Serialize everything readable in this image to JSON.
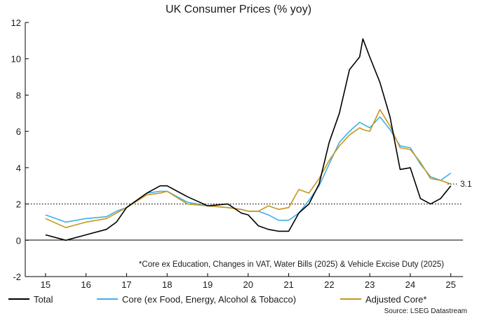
{
  "chart_data": {
    "type": "line",
    "title": "UK Consumer Prices (% yoy)",
    "xlabel": "",
    "ylabel": "",
    "xlim": [
      2014.5,
      2025.3
    ],
    "ylim": [
      -2,
      12
    ],
    "yticks": [
      -2,
      0,
      2,
      4,
      6,
      8,
      10,
      12
    ],
    "xtick_labels": [
      "15",
      "16",
      "17",
      "18",
      "19",
      "20",
      "21",
      "22",
      "23",
      "24",
      "25"
    ],
    "xtick_positions": [
      2015,
      2016,
      2017,
      2018,
      2019,
      2020,
      2021,
      2022,
      2023,
      2024,
      2025
    ],
    "reference_line": {
      "y": 2,
      "style": "dotted"
    },
    "annotation": "*Core ex Education, Changes in VAT, Water Bills (2025) & Vehicle Excise Duty (2025)",
    "end_label": "3.1",
    "end_label_value": 3.1,
    "source": "Source: LSEG Datastream",
    "grid": false,
    "legend_position": "bottom",
    "series": [
      {
        "name": "Total",
        "color": "#000000",
        "x": [
          2015.0,
          2015.5,
          2016.0,
          2016.5,
          2016.75,
          2017.0,
          2017.5,
          2017.83,
          2018.0,
          2018.5,
          2019.0,
          2019.5,
          2019.83,
          2020.0,
          2020.25,
          2020.5,
          2020.75,
          2021.0,
          2021.25,
          2021.5,
          2021.75,
          2022.0,
          2022.25,
          2022.5,
          2022.75,
          2022.83,
          2023.0,
          2023.25,
          2023.5,
          2023.75,
          2024.0,
          2024.25,
          2024.5,
          2024.75,
          2025.0
        ],
        "y": [
          0.3,
          0.0,
          0.3,
          0.6,
          1.0,
          1.8,
          2.6,
          3.0,
          3.0,
          2.4,
          1.9,
          2.0,
          1.5,
          1.4,
          0.8,
          0.6,
          0.5,
          0.5,
          1.5,
          2.0,
          3.1,
          5.4,
          7.0,
          9.4,
          10.1,
          11.1,
          10.1,
          8.7,
          6.8,
          3.9,
          4.0,
          2.3,
          2.0,
          2.3,
          3.0
        ]
      },
      {
        "name": "Core (ex Food, Energy, Alcohol & Tobacco)",
        "color": "#3fb1e8",
        "x": [
          2015.0,
          2015.5,
          2016.0,
          2016.5,
          2016.75,
          2017.0,
          2017.5,
          2017.83,
          2018.0,
          2018.5,
          2019.0,
          2019.5,
          2019.83,
          2020.0,
          2020.25,
          2020.5,
          2020.75,
          2021.0,
          2021.25,
          2021.5,
          2021.75,
          2022.0,
          2022.25,
          2022.5,
          2022.75,
          2022.83,
          2023.0,
          2023.25,
          2023.5,
          2023.75,
          2024.0,
          2024.25,
          2024.5,
          2024.75,
          2025.0
        ],
        "y": [
          1.4,
          1.0,
          1.2,
          1.3,
          1.6,
          1.8,
          2.6,
          2.7,
          2.7,
          2.1,
          1.9,
          1.8,
          1.7,
          1.6,
          1.6,
          1.4,
          1.1,
          1.1,
          1.5,
          2.2,
          3.0,
          4.2,
          5.4,
          6.0,
          6.5,
          6.4,
          6.2,
          6.8,
          6.1,
          5.2,
          5.1,
          4.2,
          3.5,
          3.3,
          3.7
        ]
      },
      {
        "name": "Adjusted Core*",
        "color": "#c8961e",
        "x": [
          2015.0,
          2015.5,
          2016.0,
          2016.5,
          2016.75,
          2017.0,
          2017.5,
          2017.83,
          2018.0,
          2018.5,
          2019.0,
          2019.5,
          2019.83,
          2020.0,
          2020.25,
          2020.5,
          2020.75,
          2021.0,
          2021.25,
          2021.5,
          2021.75,
          2022.0,
          2022.25,
          2022.5,
          2022.75,
          2022.83,
          2023.0,
          2023.25,
          2023.5,
          2023.75,
          2024.0,
          2024.25,
          2024.5,
          2024.75,
          2025.0
        ],
        "y": [
          1.2,
          0.7,
          1.0,
          1.2,
          1.5,
          1.8,
          2.5,
          2.6,
          2.7,
          2.0,
          1.9,
          1.8,
          1.7,
          1.6,
          1.6,
          1.9,
          1.7,
          1.8,
          2.8,
          2.6,
          3.4,
          4.4,
          5.2,
          5.8,
          6.2,
          6.1,
          6.0,
          7.2,
          6.3,
          5.1,
          5.0,
          4.3,
          3.4,
          3.3,
          3.1
        ]
      }
    ]
  }
}
